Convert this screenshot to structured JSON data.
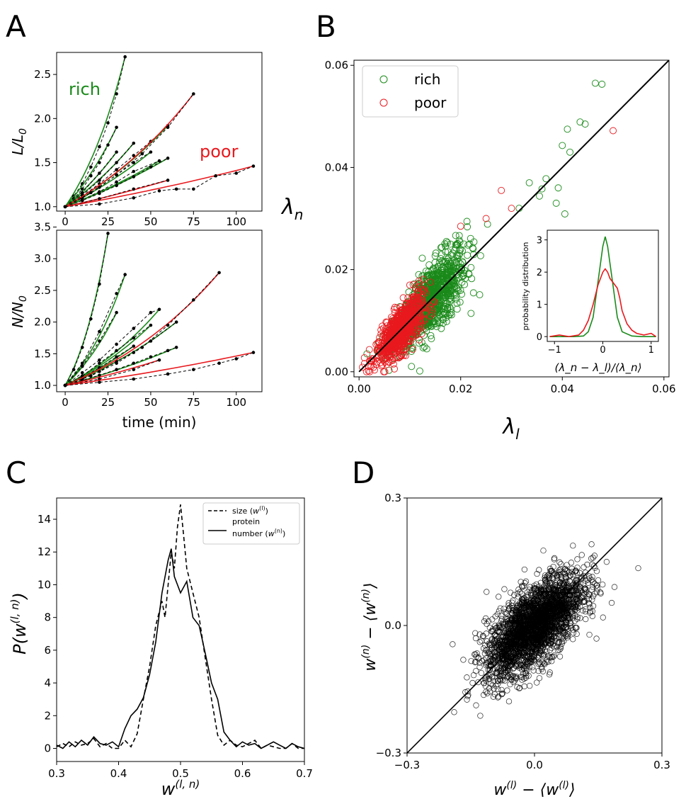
{
  "panels": {
    "a": "A",
    "b": "B",
    "c": "C",
    "d": "D"
  },
  "colors": {
    "rich": "#1a8a1a",
    "poor": "#e8191e",
    "black": "#000000"
  },
  "chart_data": [
    {
      "id": "A-top",
      "type": "line",
      "ylabel": "L/L_0",
      "ylabel_main": "L/L",
      "ylabel_sub": "0",
      "xlim": [
        -5,
        115
      ],
      "ylim": [
        0.95,
        2.75
      ],
      "xticks": [
        "0",
        "25",
        "50",
        "75",
        "100"
      ],
      "xtick_values": [
        0,
        25,
        50,
        75,
        100
      ],
      "yticks": [
        "1.0",
        "1.5",
        "2.0",
        "2.5"
      ],
      "ytick_values": [
        1.0,
        1.5,
        2.0,
        2.5
      ],
      "annotations": {
        "rich": "rich",
        "poor": "poor"
      },
      "series": [
        {
          "group": "rich",
          "x": [
            0,
            5,
            10,
            15,
            20,
            25,
            30,
            35
          ],
          "y": [
            1.0,
            1.12,
            1.26,
            1.45,
            1.68,
            1.95,
            2.28,
            2.7
          ]
        },
        {
          "group": "rich",
          "x": [
            0,
            5,
            10,
            15,
            20,
            25,
            30
          ],
          "y": [
            1.0,
            1.09,
            1.2,
            1.35,
            1.5,
            1.7,
            1.9
          ]
        },
        {
          "group": "rich",
          "x": [
            0,
            10,
            20,
            30,
            40,
            50,
            60
          ],
          "y": [
            1.0,
            1.12,
            1.26,
            1.42,
            1.58,
            1.74,
            1.92
          ]
        },
        {
          "group": "rich",
          "x": [
            0,
            10,
            20,
            30,
            40,
            50
          ],
          "y": [
            1.0,
            1.1,
            1.22,
            1.36,
            1.5,
            1.62
          ]
        },
        {
          "group": "rich",
          "x": [
            0,
            10,
            20,
            30,
            40,
            55
          ],
          "y": [
            1.0,
            1.08,
            1.17,
            1.28,
            1.4,
            1.52
          ]
        },
        {
          "group": "rich",
          "x": [
            0,
            10,
            20,
            30,
            40
          ],
          "y": [
            1.0,
            1.13,
            1.3,
            1.5,
            1.72
          ]
        },
        {
          "group": "rich",
          "x": [
            0,
            10,
            20,
            30,
            40,
            50,
            60
          ],
          "y": [
            1.0,
            1.07,
            1.15,
            1.24,
            1.34,
            1.45,
            1.55
          ]
        },
        {
          "group": "rich",
          "x": [
            0,
            10,
            20,
            30
          ],
          "y": [
            1.0,
            1.16,
            1.38,
            1.62
          ]
        },
        {
          "group": "poor",
          "x": [
            0,
            15,
            30,
            45,
            60,
            75
          ],
          "y": [
            1.0,
            1.16,
            1.36,
            1.6,
            1.9,
            2.28
          ]
        },
        {
          "group": "poor",
          "x": [
            0,
            20,
            40,
            60
          ],
          "y": [
            1.0,
            1.09,
            1.2,
            1.3
          ]
        },
        {
          "group": "poor",
          "x": [
            0,
            20,
            40,
            55,
            65,
            75,
            88,
            100,
            110
          ],
          "y": [
            1.0,
            1.03,
            1.1,
            1.18,
            1.2,
            1.2,
            1.35,
            1.38,
            1.46
          ]
        }
      ]
    },
    {
      "id": "A-bottom",
      "type": "line",
      "xlabel": "time (min)",
      "ylabel": "N/N_0",
      "ylabel_main": "N/N",
      "ylabel_sub": "0",
      "xlim": [
        -5,
        115
      ],
      "ylim": [
        0.9,
        3.45
      ],
      "xticks": [
        "0",
        "25",
        "50",
        "75",
        "100"
      ],
      "xtick_values": [
        0,
        25,
        50,
        75,
        100
      ],
      "yticks": [
        "1.0",
        "1.5",
        "2.0",
        "2.5",
        "3.0",
        "3.5"
      ],
      "ytick_values": [
        1.0,
        1.5,
        2.0,
        2.5,
        3.0,
        3.5
      ],
      "series": [
        {
          "group": "rich",
          "x": [
            0,
            5,
            10,
            15,
            20,
            25
          ],
          "y": [
            1.0,
            1.25,
            1.6,
            2.05,
            2.6,
            3.4
          ]
        },
        {
          "group": "rich",
          "x": [
            0,
            10,
            20,
            30,
            35
          ],
          "y": [
            1.0,
            1.35,
            1.85,
            2.45,
            2.75
          ]
        },
        {
          "group": "rich",
          "x": [
            0,
            10,
            20,
            30,
            40,
            50,
            55
          ],
          "y": [
            1.0,
            1.2,
            1.4,
            1.65,
            1.9,
            2.15,
            2.2
          ]
        },
        {
          "group": "rich",
          "x": [
            0,
            10,
            20,
            30,
            40,
            50
          ],
          "y": [
            1.0,
            1.15,
            1.35,
            1.55,
            1.75,
            1.95
          ]
        },
        {
          "group": "rich",
          "x": [
            0,
            10,
            20,
            30,
            40,
            50,
            65
          ],
          "y": [
            1.0,
            1.1,
            1.22,
            1.38,
            1.52,
            1.7,
            2.0
          ]
        },
        {
          "group": "rich",
          "x": [
            0,
            10,
            20,
            30,
            40,
            50,
            60,
            65
          ],
          "y": [
            1.0,
            1.08,
            1.16,
            1.25,
            1.35,
            1.45,
            1.55,
            1.6
          ]
        },
        {
          "group": "rich",
          "x": [
            0,
            10,
            20,
            30
          ],
          "y": [
            1.0,
            1.3,
            1.7,
            2.15
          ]
        },
        {
          "group": "rich",
          "x": [
            0,
            10,
            20,
            30,
            40
          ],
          "y": [
            1.0,
            1.12,
            1.28,
            1.45,
            1.62
          ]
        },
        {
          "group": "poor",
          "x": [
            0,
            15,
            30,
            45,
            60,
            75,
            90
          ],
          "y": [
            1.0,
            1.15,
            1.35,
            1.6,
            1.95,
            2.35,
            2.78
          ]
        },
        {
          "group": "poor",
          "x": [
            0,
            20,
            40,
            55
          ],
          "y": [
            1.0,
            1.1,
            1.25,
            1.4
          ]
        },
        {
          "group": "poor",
          "x": [
            0,
            20,
            40,
            60,
            75,
            90,
            100,
            110
          ],
          "y": [
            1.0,
            1.05,
            1.1,
            1.18,
            1.25,
            1.35,
            1.42,
            1.52
          ]
        }
      ]
    },
    {
      "id": "B",
      "type": "scatter",
      "xlabel": "λ_l",
      "ylabel": "λ_n",
      "xlim": [
        -0.001,
        0.061
      ],
      "ylim": [
        -0.001,
        0.061
      ],
      "xticks": [
        "0.00",
        "0.02",
        "0.04",
        "0.06"
      ],
      "xtick_values": [
        0,
        0.02,
        0.04,
        0.06
      ],
      "yticks": [
        "0.00",
        "0.02",
        "0.04",
        "0.06"
      ],
      "ytick_values": [
        0,
        0.02,
        0.04,
        0.06
      ],
      "legend": {
        "position": "top-left",
        "entries": [
          "rich",
          "poor"
        ]
      },
      "diagonal": [
        [
          0,
          0
        ],
        [
          0.061,
          0.061
        ]
      ],
      "series": [
        {
          "name": "rich",
          "n": 900,
          "center": [
            0.014,
            0.014
          ],
          "spread": [
            0.0065,
            0.0015
          ],
          "min": 0.001
        },
        {
          "name": "poor",
          "n": 700,
          "center": [
            0.008,
            0.008
          ],
          "spread": [
            0.0042,
            0.0012
          ],
          "min": 0.0
        },
        {
          "name": "rich-outliers",
          "x": [
            0.0465,
            0.0478,
            0.0435,
            0.041,
            0.04,
            0.0415,
            0.0445,
            0.0368,
            0.0392,
            0.0405,
            0.0388,
            0.0355,
            0.036,
            0.0335,
            0.0315
          ],
          "y": [
            0.0565,
            0.0563,
            0.0489,
            0.0475,
            0.0443,
            0.043,
            0.0485,
            0.0378,
            0.036,
            0.0309,
            0.033,
            0.0344,
            0.0358,
            0.037,
            0.032
          ]
        },
        {
          "name": "poor-outliers",
          "x": [
            0.05,
            0.028,
            0.025,
            0.03,
            0.02
          ],
          "y": [
            0.0472,
            0.0355,
            0.03,
            0.032,
            0.0285
          ]
        }
      ],
      "inset": {
        "type": "line",
        "xlabel": "(λ_n − λ_l)/⟨λ_n⟩",
        "ylabel": "probability distribution",
        "xlim": [
          -1.15,
          1.15
        ],
        "ylim": [
          -0.15,
          3.3
        ],
        "xticks": [
          "−1",
          "0",
          "1"
        ],
        "xtick_values": [
          -1,
          0,
          1
        ],
        "yticks": [
          "0",
          "1",
          "2",
          "3"
        ],
        "ytick_values": [
          0,
          1,
          2,
          3
        ],
        "series": [
          {
            "name": "rich",
            "x": [
              -1.1,
              -0.8,
              -0.6,
              -0.4,
              -0.3,
              -0.2,
              -0.1,
              0.0,
              0.05,
              0.1,
              0.2,
              0.3,
              0.4,
              0.6,
              0.8,
              1.1
            ],
            "y": [
              0.0,
              0.0,
              0.0,
              0.02,
              0.15,
              0.6,
              1.7,
              2.8,
              3.1,
              2.8,
              1.7,
              0.6,
              0.15,
              0.02,
              0.0,
              0.0
            ]
          },
          {
            "name": "poor",
            "x": [
              -1.1,
              -0.9,
              -0.7,
              -0.5,
              -0.4,
              -0.3,
              -0.2,
              -0.1,
              0.0,
              0.05,
              0.1,
              0.15,
              0.2,
              0.3,
              0.35,
              0.4,
              0.5,
              0.6,
              0.7,
              0.85,
              1.0,
              1.1
            ],
            "y": [
              0.0,
              0.05,
              0.0,
              0.05,
              0.2,
              0.5,
              1.0,
              1.6,
              2.0,
              2.1,
              2.0,
              1.8,
              1.7,
              1.5,
              1.2,
              0.8,
              0.4,
              0.2,
              0.1,
              0.05,
              0.1,
              0.0
            ]
          }
        ]
      }
    },
    {
      "id": "C",
      "type": "line",
      "xlabel": "w^(l,n)",
      "ylabel": "P(w^(l,n))",
      "xlim": [
        0.3,
        0.7
      ],
      "ylim": [
        -0.8,
        15.3
      ],
      "xticks": [
        "0.3",
        "0.4",
        "0.5",
        "0.6",
        "0.7"
      ],
      "xtick_values": [
        0.3,
        0.4,
        0.5,
        0.6,
        0.7
      ],
      "yticks": [
        "0",
        "2",
        "4",
        "6",
        "8",
        "10",
        "12",
        "14"
      ],
      "ytick_values": [
        0,
        2,
        4,
        6,
        8,
        10,
        12,
        14
      ],
      "legend": {
        "position": "top-right",
        "entries": [
          "size",
          "protein number"
        ]
      },
      "series": [
        {
          "name": "size",
          "style": "dashed",
          "x": [
            0.3,
            0.31,
            0.32,
            0.33,
            0.34,
            0.35,
            0.36,
            0.37,
            0.38,
            0.39,
            0.4,
            0.41,
            0.42,
            0.43,
            0.44,
            0.45,
            0.46,
            0.47,
            0.475,
            0.48,
            0.485,
            0.49,
            0.495,
            0.5,
            0.505,
            0.51,
            0.52,
            0.53,
            0.54,
            0.55,
            0.56,
            0.57,
            0.58,
            0.59,
            0.6,
            0.61,
            0.62,
            0.63,
            0.64,
            0.65,
            0.66,
            0.67,
            0.68,
            0.69,
            0.7
          ],
          "y": [
            0.1,
            0.3,
            0.1,
            0.4,
            0.2,
            0.3,
            0.6,
            0.1,
            0.3,
            0.0,
            0.0,
            0.5,
            0.1,
            0.9,
            3.0,
            5.0,
            7.5,
            9.0,
            8.0,
            10.0,
            12.0,
            11.0,
            13.5,
            14.9,
            13.0,
            11.0,
            9.5,
            8.0,
            5.5,
            3.0,
            0.8,
            0.2,
            0.5,
            0.2,
            0.1,
            0.3,
            0.5,
            0.0,
            0.2,
            0.1,
            0.0,
            0.0,
            0.3,
            0.0,
            0.0
          ]
        },
        {
          "name": "protein number",
          "style": "solid",
          "x": [
            0.3,
            0.31,
            0.32,
            0.33,
            0.34,
            0.35,
            0.36,
            0.37,
            0.38,
            0.39,
            0.4,
            0.41,
            0.42,
            0.43,
            0.44,
            0.45,
            0.46,
            0.47,
            0.48,
            0.485,
            0.49,
            0.5,
            0.51,
            0.52,
            0.53,
            0.54,
            0.55,
            0.56,
            0.57,
            0.58,
            0.59,
            0.6,
            0.61,
            0.62,
            0.63,
            0.64,
            0.65,
            0.66,
            0.67,
            0.68,
            0.69,
            0.7
          ],
          "y": [
            0.2,
            0.0,
            0.4,
            0.1,
            0.5,
            0.2,
            0.7,
            0.3,
            0.2,
            0.4,
            0.1,
            1.2,
            2.0,
            2.4,
            3.1,
            4.5,
            6.5,
            9.5,
            11.5,
            12.2,
            10.5,
            9.5,
            10.2,
            8.0,
            7.5,
            5.8,
            4.0,
            3.0,
            1.0,
            0.5,
            0.1,
            0.4,
            0.2,
            0.3,
            0.0,
            0.2,
            0.4,
            0.2,
            0.0,
            0.3,
            0.1,
            0.0
          ]
        }
      ]
    },
    {
      "id": "D",
      "type": "scatter",
      "xlabel": "w^(l) − ⟨w^(l)⟩",
      "ylabel": "w^(n) − ⟨w^(n)⟩",
      "xlim": [
        -0.3,
        0.3
      ],
      "ylim": [
        -0.3,
        0.3
      ],
      "xticks": [
        "−0.3",
        "0.0",
        "0.3"
      ],
      "xtick_values": [
        -0.3,
        0.0,
        0.3
      ],
      "yticks": [
        "−0.3",
        "0.0",
        "0.3"
      ],
      "ytick_values": [
        -0.3,
        0.0,
        0.3
      ],
      "diagonal": [
        [
          -0.3,
          -0.3
        ],
        [
          0.3,
          0.3
        ]
      ],
      "series": [
        {
          "name": "cells",
          "n": 2600,
          "center": [
            0.0,
            0.0
          ],
          "spread": [
            0.06,
            0.045
          ]
        }
      ]
    }
  ]
}
